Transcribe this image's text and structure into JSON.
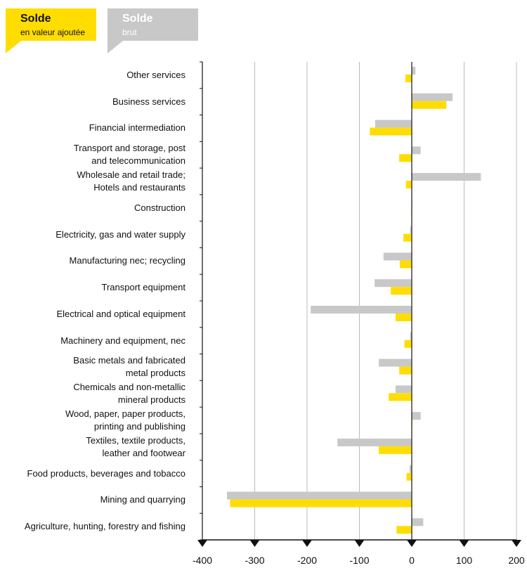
{
  "legend": {
    "value_added": {
      "title": "Solde",
      "subtitle": "en valeur ajoutée"
    },
    "gross": {
      "title": "Solde",
      "subtitle": "brut"
    }
  },
  "colors": {
    "value_added": "#FFDD00",
    "gross": "#C8C8C8",
    "axis": "#111111",
    "grid": "#BBBBBB"
  },
  "chart_data": {
    "type": "bar",
    "orientation": "horizontal",
    "categories": [
      "Other services",
      "Business services",
      "Financial intermediation",
      "Transport and storage, post\nand telecommunication",
      "Wholesale and retail trade;\nHotels and restaurants",
      "Construction",
      "Electricity, gas and water supply",
      "Manufacturing nec; recycling",
      "Transport equipment",
      "Electrical and optical equipment",
      "Machinery and equipment, nec",
      "Basic metals and fabricated\nmetal products",
      "Chemicals and non-metallic\nmineral products",
      "Wood, paper, paper products,\nprinting and publishing",
      "Textiles, textile products,\nleather and footwear",
      "Food products, beverages and tobacco",
      "Mining and quarrying",
      "Agriculture, hunting, forestry and fishing"
    ],
    "series": [
      {
        "name": "Solde brut",
        "color": "#C8C8C8",
        "values": [
          7,
          78,
          -70,
          17,
          132,
          1,
          -3,
          -54,
          -71,
          -193,
          -3,
          -63,
          -31,
          17,
          -142,
          -4,
          -353,
          22
        ]
      },
      {
        "name": "Solde en valeur ajoutée",
        "color": "#FFDD00",
        "values": [
          -12,
          66,
          -80,
          -24,
          -11,
          -1,
          -16,
          -23,
          -40,
          -31,
          -14,
          -24,
          -44,
          1,
          -63,
          -10,
          -347,
          -29
        ]
      }
    ],
    "xlim": [
      -400,
      200
    ],
    "xticks": [
      -400,
      -300,
      -200,
      -100,
      0,
      100,
      200
    ],
    "xtick_labels": [
      "-400",
      "-300",
      "-200",
      "-100",
      "0",
      "100",
      "200"
    ],
    "grid": true,
    "legend_position": "top-left"
  }
}
